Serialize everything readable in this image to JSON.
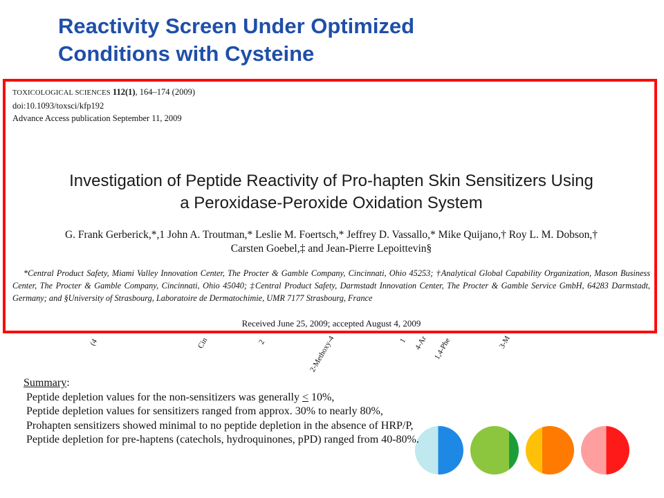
{
  "slide": {
    "title_line1": "Reactivity Screen Under Optimized",
    "title_line2": "Conditions with Cysteine"
  },
  "chart_ticks": [
    "(4",
    "Cin",
    "2",
    "2-Methoxy-4",
    "1",
    "4-Ar",
    "1,4-Phe",
    "3-M"
  ],
  "paper": {
    "journal_name": "TOXICOLOGICAL SCIENCES",
    "volume": "112(1)",
    "pages": ", 164–174 (2009)",
    "doi": "doi:10.1093/toxsci/kfp192",
    "advance": "Advance Access publication September 11, 2009",
    "title_line1": "Investigation of Peptide Reactivity of Pro-hapten Skin Sensitizers Using",
    "title_line2": "a Peroxidase-Peroxide Oxidation System",
    "authors_line1": "G. Frank Gerberick,*,1 John A. Troutman,* Leslie M. Foertsch,* Jeffrey D. Vassallo,* Mike Quijano,† Roy L. M. Dobson,†",
    "authors_line2": "Carsten Goebel,‡ and Jean-Pierre Lepoittevin§",
    "affiliations": "*Central Product Safety, Miami Valley Innovation Center, The Procter & Gamble Company, Cincinnati, Ohio 45253; †Analytical Global Capability Organization, Mason Business Center, The Procter & Gamble Company, Cincinnati, Ohio 45040; ‡Central Product Safety, Darmstadt Innovation Center, The Procter & Gamble Service GmbH, 64283 Darmstadt, Germany; and §University of Strasbourg, Laboratoire de Dermatochimie, UMR 7177 Strasbourg, France",
    "received": "Received June 25, 2009; accepted August 4, 2009"
  },
  "summary": {
    "heading": "Summary",
    "heading_colon": ":",
    "line1_pre": "Peptide depletion values for the non-sensitizers was generally ",
    "line1_le": "<",
    "line1_post": " 10%,",
    "line2": "Peptide depletion values for sensitizers ranged from approx. 30% to nearly 80%,",
    "line3": "Prohapten sensitizers showed minimal to no peptide depletion in the absence of HRP/P,",
    "line4": "Peptide depletion for pre-haptens (catechols, hydroquinones, pPD) ranged from 40-80%."
  },
  "colors": {
    "title": "#1f4fa8",
    "box_border": "#ff0a0a",
    "circle1": [
      "#bfe8ef",
      "#1e88e5"
    ],
    "circle2": [
      "#8cc63f",
      "#1b9e3a"
    ],
    "circle3": [
      "#ffc107",
      "#ff7a00"
    ],
    "circle4": [
      "#ff9e9e",
      "#ff1a1a"
    ]
  }
}
